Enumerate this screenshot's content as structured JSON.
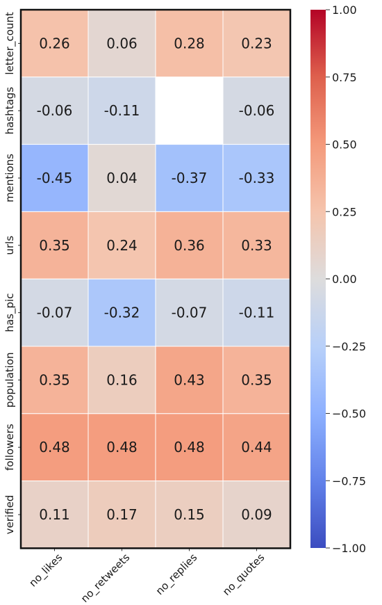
{
  "chart_data": {
    "type": "heatmap",
    "title": "",
    "xlabel": "",
    "ylabel": "",
    "columns": [
      "no_likes",
      "no_retweets",
      "no_replies",
      "no_quotes"
    ],
    "rows": [
      "letter_count",
      "hashtags",
      "mentions",
      "urls",
      "has_pic",
      "population",
      "followers",
      "verified"
    ],
    "values": [
      [
        0.26,
        0.06,
        0.28,
        0.23
      ],
      [
        -0.06,
        -0.11,
        null,
        -0.06
      ],
      [
        -0.45,
        0.04,
        -0.37,
        -0.33
      ],
      [
        0.35,
        0.24,
        0.36,
        0.33
      ],
      [
        -0.07,
        -0.32,
        -0.07,
        -0.11
      ],
      [
        0.35,
        0.16,
        0.43,
        0.35
      ],
      [
        0.48,
        0.48,
        0.48,
        0.44
      ],
      [
        0.11,
        0.17,
        0.15,
        0.09
      ]
    ],
    "value_labels": [
      [
        "0.26",
        "0.06",
        "0.28",
        "0.23"
      ],
      [
        "-0.06",
        "-0.11",
        "",
        "-0.06"
      ],
      [
        "-0.45",
        "0.04",
        "-0.37",
        "-0.33"
      ],
      [
        "0.35",
        "0.24",
        "0.36",
        "0.33"
      ],
      [
        "-0.07",
        "-0.32",
        "-0.07",
        "-0.11"
      ],
      [
        "0.35",
        "0.16",
        "0.43",
        "0.35"
      ],
      [
        "0.48",
        "0.48",
        "0.48",
        "0.44"
      ],
      [
        "0.11",
        "0.17",
        "0.15",
        "0.09"
      ]
    ],
    "colormap": "coolwarm",
    "colorbar": {
      "vmin": -1.0,
      "vmax": 1.0,
      "ticks": [
        1.0,
        0.75,
        0.5,
        0.25,
        0.0,
        -0.25,
        -0.5,
        -0.75,
        -1.0
      ],
      "tick_labels": [
        "1.00",
        "0.75",
        "0.50",
        "0.25",
        "0.00",
        "−0.25",
        "−0.50",
        "−0.75",
        "−1.00"
      ],
      "position": "right"
    },
    "grid": false,
    "legend": "colorbar-right"
  }
}
